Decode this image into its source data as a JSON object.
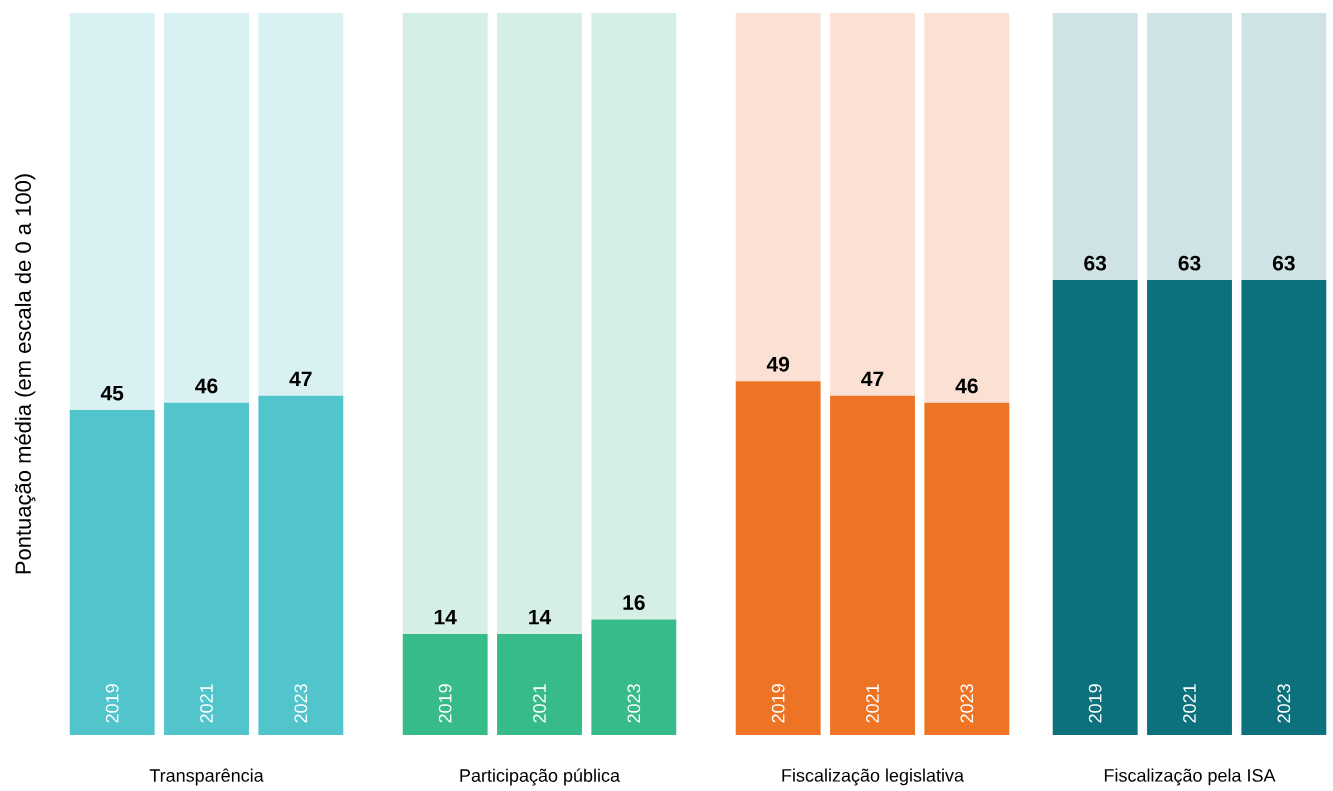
{
  "chart_data": [
    {
      "type": "bar",
      "stacked": true,
      "tick_labels": "x",
      "ylabel": "Pontuação média (em escala de 0 a 100)",
      "xlabel": "Transparência",
      "categories": [
        "2019",
        "2021",
        "2023"
      ],
      "series": [
        {
          "color": "#52c4cb",
          "values": [
            45,
            46,
            47
          ],
          "value_labels": [
            "45",
            "46",
            "47"
          ]
        },
        {
          "color": "#d9f1f2",
          "values": [
            55,
            54,
            53
          ]
        }
      ]
    },
    {
      "type": "bar",
      "stacked": true,
      "tick_labels": "x",
      "xlabel": "Participação pública",
      "categories": [
        "2019",
        "2021",
        "2023"
      ],
      "series": [
        {
          "color": "#37bb88",
          "values": [
            14,
            14,
            16
          ],
          "value_labels": [
            "14",
            "14",
            "16"
          ]
        },
        {
          "color": "#d6efe4",
          "values": [
            86,
            86,
            84
          ]
        }
      ]
    },
    {
      "type": "bar",
      "stacked": true,
      "tick_labels": "x",
      "xlabel": "Fiscalização legislativa",
      "categories": [
        "2019",
        "2021",
        "2023"
      ],
      "series": [
        {
          "color": "#ed7425",
          "values": [
            49,
            47,
            46
          ],
          "value_labels": [
            "49",
            "47",
            "46"
          ]
        },
        {
          "color": "#fbe1d3",
          "values": [
            51,
            53,
            54
          ]
        }
      ]
    },
    {
      "type": "bar",
      "stacked": true,
      "tick_labels": "x",
      "xlabel": "Fiscalização pela ISA",
      "categories": [
        "2019",
        "2021",
        "2023"
      ],
      "series": [
        {
          "color": "#0c717c",
          "values": [
            63,
            63,
            63
          ],
          "value_labels": [
            "63",
            "63",
            "63"
          ]
        },
        {
          "color": "#cfe3e6",
          "values": [
            37,
            37,
            37
          ]
        }
      ]
    }
  ]
}
